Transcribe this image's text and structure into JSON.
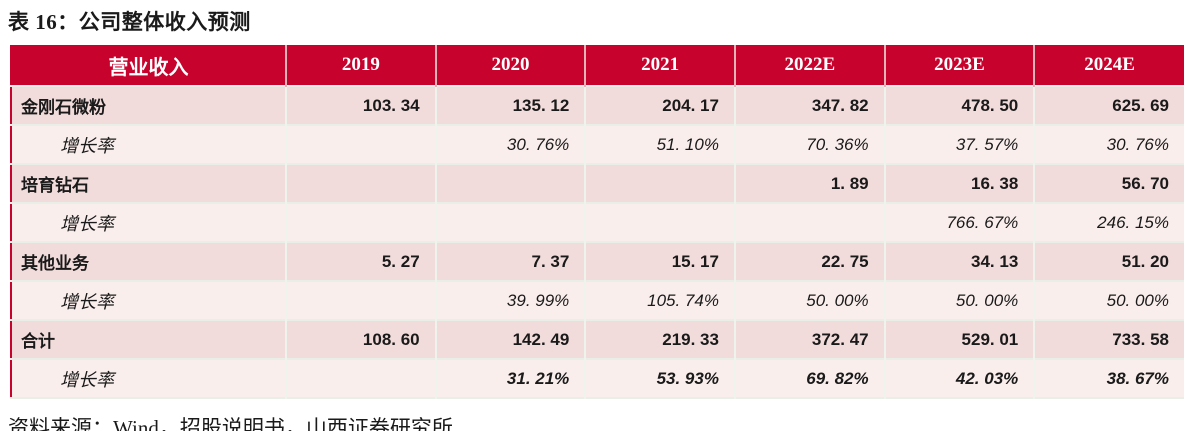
{
  "title": "表 16：公司整体收入预测",
  "source": "资料来源：Wind，招股说明书，山西证券研究所",
  "colors": {
    "header_bg": "#c7032d",
    "header_text": "#ffffff",
    "category_row_bg": "#f2dcdb",
    "growth_row_bg": "#f9eeec",
    "grid_line": "#e9efe6"
  },
  "table": {
    "columns": [
      "营业收入",
      "2019",
      "2020",
      "2021",
      "2022E",
      "2023E",
      "2024E"
    ],
    "rows": [
      {
        "label": "金刚石微粉",
        "type": "category",
        "values": [
          "103. 34",
          "135. 12",
          "204. 17",
          "347. 82",
          "478. 50",
          "625. 69"
        ]
      },
      {
        "label": "增长率",
        "type": "growth",
        "values": [
          "",
          "30. 76%",
          "51. 10%",
          "70. 36%",
          "37. 57%",
          "30. 76%"
        ]
      },
      {
        "label": "培育钻石",
        "type": "category",
        "values": [
          "",
          "",
          "",
          "1. 89",
          "16. 38",
          "56. 70"
        ]
      },
      {
        "label": "增长率",
        "type": "growth",
        "values": [
          "",
          "",
          "",
          "",
          "766. 67%",
          "246. 15%"
        ]
      },
      {
        "label": "其他业务",
        "type": "category",
        "values": [
          "5. 27",
          "7. 37",
          "15. 17",
          "22. 75",
          "34. 13",
          "51. 20"
        ]
      },
      {
        "label": "增长率",
        "type": "growth",
        "values": [
          "",
          "39. 99%",
          "105. 74%",
          "50. 00%",
          "50. 00%",
          "50. 00%"
        ]
      },
      {
        "label": "合计",
        "type": "category",
        "values": [
          "108. 60",
          "142. 49",
          "219. 33",
          "372. 47",
          "529. 01",
          "733. 58"
        ]
      },
      {
        "label": "增长率",
        "type": "growth-bold",
        "values": [
          "",
          "31. 21%",
          "53. 93%",
          "69. 82%",
          "42. 03%",
          "38. 67%"
        ]
      }
    ]
  }
}
